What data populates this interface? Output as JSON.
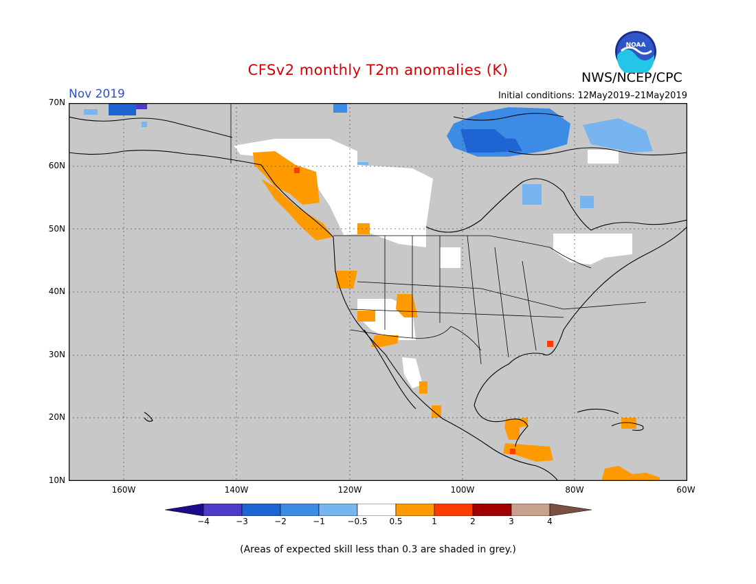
{
  "header": {
    "title": "CFSv2 monthly T2m anomalies (K)",
    "agency": "NWS/NCEP/CPC",
    "month": "Nov 2019",
    "initial_conditions": "Initial conditions: 12May2019–21May2019",
    "logo_text": "NOAA"
  },
  "map": {
    "lat_labels": [
      "70N",
      "60N",
      "50N",
      "40N",
      "30N",
      "20N",
      "10N"
    ],
    "lon_labels": [
      "160W",
      "140W",
      "120W",
      "100W",
      "80W",
      "60W"
    ],
    "background_color": "#c8c8c8"
  },
  "colorbar": {
    "labels": [
      "−4",
      "−3",
      "−2",
      "−1",
      "−0.5",
      "0.5",
      "1",
      "2",
      "3",
      "4"
    ],
    "colors": [
      "#1c0c8c",
      "#4c3cc8",
      "#1e64d2",
      "#3c8ce6",
      "#78b4f0",
      "#ffffff",
      "#ff9a00",
      "#ff3c00",
      "#a00000",
      "#c8a08c",
      "#7a5040"
    ]
  },
  "footnote": "(Areas of expected skill less than 0.3 are shaded in grey.)"
}
